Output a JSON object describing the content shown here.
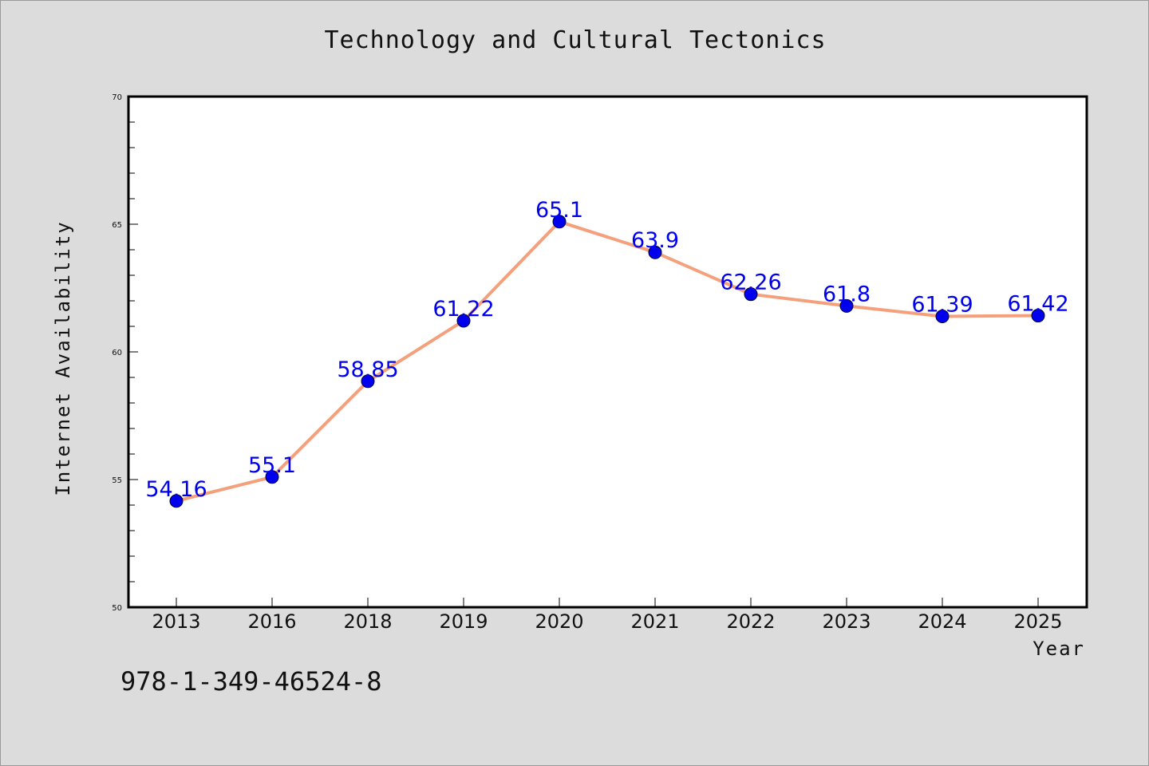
{
  "chart_data": {
    "type": "line",
    "title": "Technology and Cultural Tectonics",
    "xlabel": "Year",
    "ylabel": "Internet Availability",
    "categories": [
      "2013",
      "2016",
      "2018",
      "2019",
      "2020",
      "2021",
      "2022",
      "2023",
      "2024",
      "2025"
    ],
    "values": [
      54.16,
      55.1,
      58.85,
      61.22,
      65.1,
      63.9,
      62.26,
      61.8,
      61.39,
      61.42
    ],
    "data_labels": [
      "54.16",
      "55.1",
      "58.85",
      "61.22",
      "65.1",
      "63.9",
      "62.26",
      "61.8",
      "61.39",
      "61.42"
    ],
    "ylim": [
      50,
      70
    ],
    "y_ticks": [
      "50",
      "55",
      "60",
      "65",
      "70"
    ],
    "y_tick_values": [
      50,
      55,
      60,
      65,
      70
    ],
    "y_minor_step": 1,
    "grid": false,
    "colors": {
      "line": "#f5a07c",
      "marker": "#0000ee",
      "data_label": "#0000ee",
      "background": "#dcdcdc",
      "plot_background": "#ffffff"
    }
  },
  "footnote": "978-1-349-46524-8"
}
